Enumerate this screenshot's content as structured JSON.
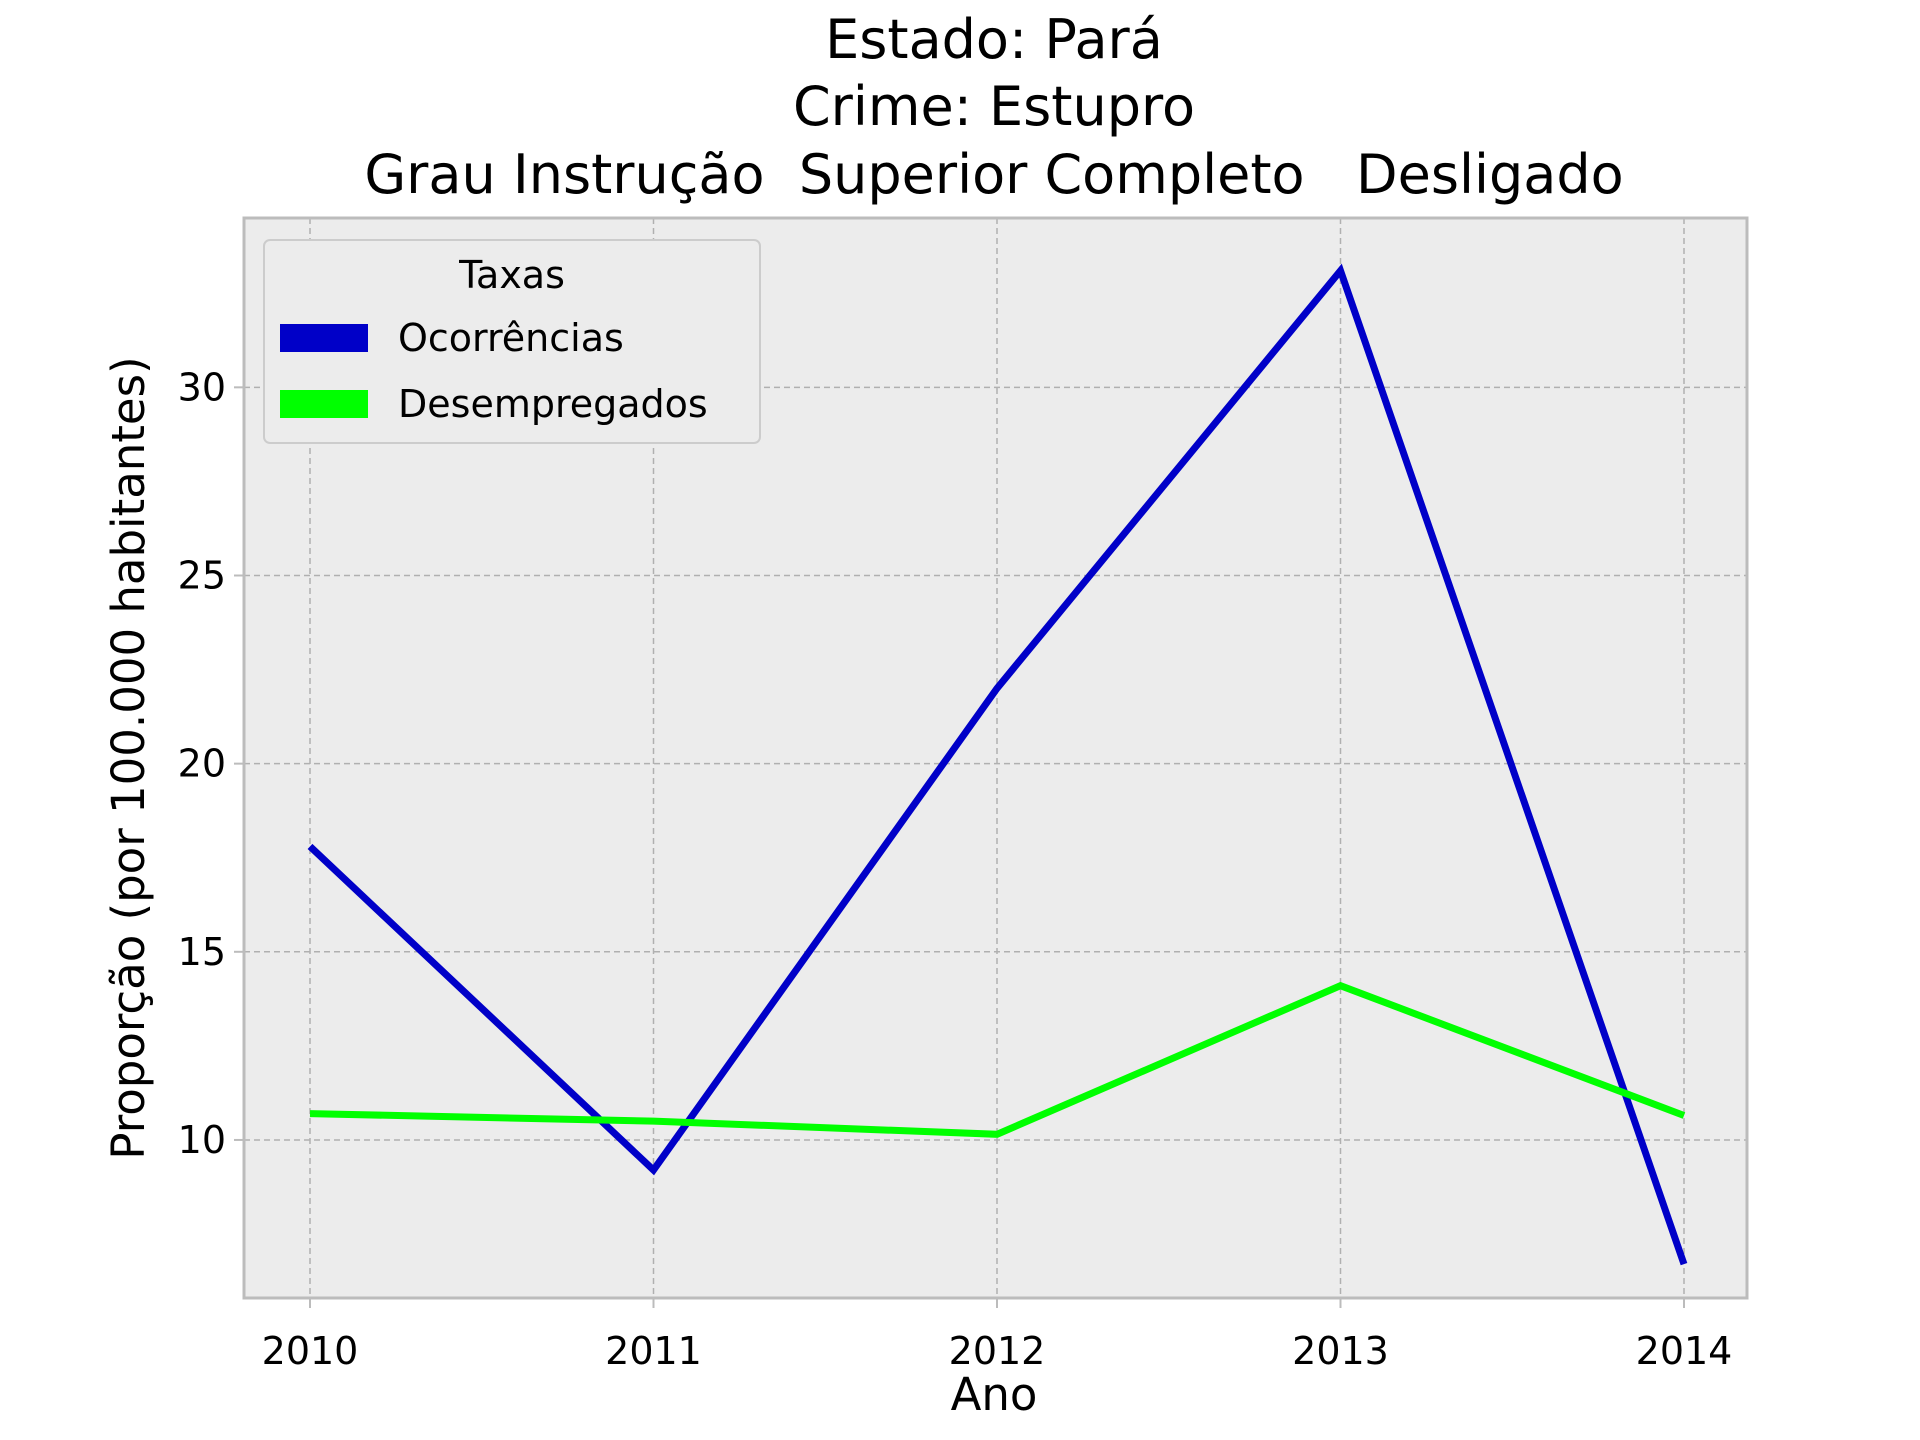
{
  "chart_data": {
    "type": "line",
    "title_lines": [
      "Estado: Pará",
      "Crime: Estupro",
      "Grau Instrução  Superior Completo   Desligado"
    ],
    "xlabel": "Ano",
    "ylabel": "Proporção (por 100.000 habitantes)",
    "categories": [
      "2010",
      "2011",
      "2012",
      "2013",
      "2014"
    ],
    "y_ticks": [
      10,
      15,
      20,
      25,
      30
    ],
    "y_tick_labels": [
      "10",
      "15",
      "20",
      "25",
      "30"
    ],
    "ylim": [
      5.8,
      34.5
    ],
    "grid": true,
    "legend": {
      "title": "Taxas",
      "placement": "top-left"
    },
    "series": [
      {
        "name": "Ocorrências",
        "color": "#0000c8",
        "values": [
          17.8,
          9.2,
          22.0,
          33.1,
          6.7
        ]
      },
      {
        "name": "Desempregados",
        "color": "#00ff00",
        "values": [
          10.7,
          10.5,
          10.15,
          14.1,
          10.65
        ]
      }
    ]
  },
  "colors": {
    "plot_background": "#ececec",
    "grid": "#b0b0b0",
    "frame": "#bcbcbc"
  }
}
